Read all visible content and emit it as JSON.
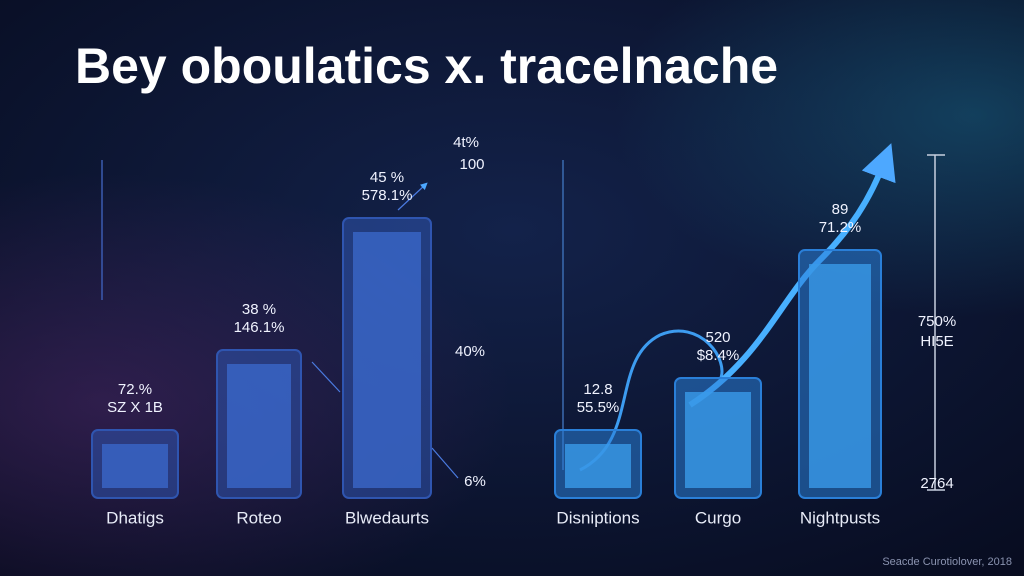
{
  "title": "Bey oboulatics x. tracelnache",
  "footer": "Seacde Curotiolover, 2018",
  "chart_data": [
    {
      "type": "bar",
      "color": "#2f55b0",
      "inner_color": "#3a66c8",
      "categories": [
        "Dhatigs",
        "Roteo",
        "Blwedaurts"
      ],
      "values": [
        68,
        148,
        280
      ],
      "bar_labels": [
        [
          "72.%",
          "SZ X 1B"
        ],
        [
          "38 %",
          "146.1%"
        ],
        [
          "45 %",
          "578.1%"
        ]
      ],
      "annotations": [
        "4t%",
        "100",
        "40%",
        "6%"
      ],
      "ylim": [
        0,
        300
      ]
    },
    {
      "type": "bar",
      "color": "#2a7fd8",
      "inner_color": "#3a9ae8",
      "categories": [
        "Disniptions",
        "Curgo",
        "Nightpusts"
      ],
      "values": [
        68,
        120,
        248
      ],
      "bar_labels": [
        [
          "12.8",
          "55.5%"
        ],
        [
          "520",
          "$8.4%"
        ],
        [
          "89",
          "71.2%"
        ]
      ],
      "annotations": [
        "750%",
        "HI5E",
        "2764"
      ],
      "ylim": [
        0,
        300
      ]
    }
  ]
}
